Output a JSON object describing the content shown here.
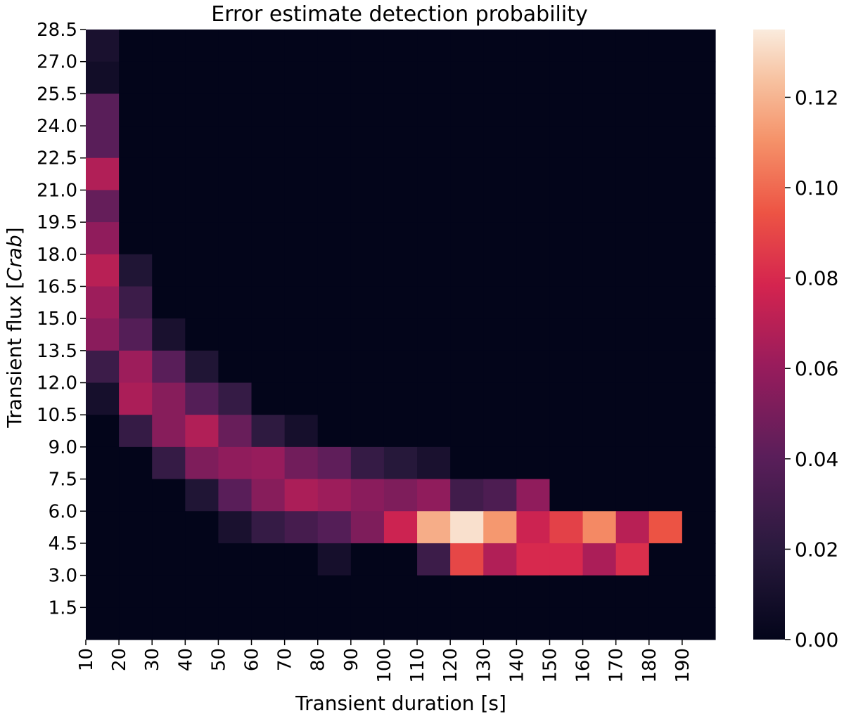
{
  "chart_data": {
    "type": "heatmap",
    "title": "Error estimate detection probability",
    "xlabel": "Transient duration [s]",
    "ylabel_prefix": "Transient flux [",
    "ylabel_italic": "Crab",
    "ylabel_suffix": "]",
    "x_tick_labels": [
      "10",
      "20",
      "30",
      "40",
      "50",
      "60",
      "70",
      "80",
      "90",
      "100",
      "110",
      "120",
      "130",
      "140",
      "150",
      "160",
      "170",
      "180",
      "190"
    ],
    "y_tick_labels": [
      "1.5",
      "3.0",
      "4.5",
      "6.0",
      "7.5",
      "9.0",
      "10.5",
      "12.0",
      "13.5",
      "15.0",
      "16.5",
      "18.0",
      "19.5",
      "21.0",
      "22.5",
      "24.0",
      "25.5",
      "27.0",
      "28.5"
    ],
    "x_bins": [
      10,
      20,
      30,
      40,
      50,
      60,
      70,
      80,
      90,
      100,
      110,
      120,
      130,
      140,
      150,
      160,
      170,
      180,
      190
    ],
    "y_bins_top_to_bottom": [
      28.5,
      27.0,
      25.5,
      24.0,
      22.5,
      21.0,
      19.5,
      18.0,
      16.5,
      15.0,
      13.5,
      12.0,
      10.5,
      9.0,
      7.5,
      6.0,
      4.5,
      3.0,
      1.5
    ],
    "values": [
      [
        0.012,
        0,
        0,
        0,
        0,
        0,
        0,
        0,
        0,
        0,
        0,
        0,
        0,
        0,
        0,
        0,
        0,
        0,
        0
      ],
      [
        0.008,
        0,
        0,
        0,
        0,
        0,
        0,
        0,
        0,
        0,
        0,
        0,
        0,
        0,
        0,
        0,
        0,
        0,
        0
      ],
      [
        0.04,
        0,
        0,
        0,
        0,
        0,
        0,
        0,
        0,
        0,
        0,
        0,
        0,
        0,
        0,
        0,
        0,
        0,
        0
      ],
      [
        0.04,
        0,
        0,
        0,
        0,
        0,
        0,
        0,
        0,
        0,
        0,
        0,
        0,
        0,
        0,
        0,
        0,
        0,
        0
      ],
      [
        0.068,
        0,
        0,
        0,
        0,
        0,
        0,
        0,
        0,
        0,
        0,
        0,
        0,
        0,
        0,
        0,
        0,
        0,
        0
      ],
      [
        0.044,
        0,
        0,
        0,
        0,
        0,
        0,
        0,
        0,
        0,
        0,
        0,
        0,
        0,
        0,
        0,
        0,
        0,
        0
      ],
      [
        0.058,
        0,
        0,
        0,
        0,
        0,
        0,
        0,
        0,
        0,
        0,
        0,
        0,
        0,
        0,
        0,
        0,
        0,
        0
      ],
      [
        0.07,
        0.015,
        0,
        0,
        0,
        0,
        0,
        0,
        0,
        0,
        0,
        0,
        0,
        0,
        0,
        0,
        0,
        0,
        0
      ],
      [
        0.062,
        0.028,
        0,
        0,
        0,
        0,
        0,
        0,
        0,
        0,
        0,
        0,
        0,
        0,
        0,
        0,
        0,
        0,
        0
      ],
      [
        0.056,
        0.038,
        0.012,
        0,
        0,
        0,
        0,
        0,
        0,
        0,
        0,
        0,
        0,
        0,
        0,
        0,
        0,
        0,
        0
      ],
      [
        0.028,
        0.062,
        0.04,
        0.015,
        0,
        0,
        0,
        0,
        0,
        0,
        0,
        0,
        0,
        0,
        0,
        0,
        0,
        0,
        0
      ],
      [
        0.01,
        0.066,
        0.055,
        0.038,
        0.025,
        0,
        0,
        0,
        0,
        0,
        0,
        0,
        0,
        0,
        0,
        0,
        0,
        0,
        0
      ],
      [
        0,
        0.025,
        0.055,
        0.068,
        0.045,
        0.022,
        0.01,
        0,
        0,
        0,
        0,
        0,
        0,
        0,
        0,
        0,
        0,
        0,
        0
      ],
      [
        0,
        0,
        0.025,
        0.052,
        0.058,
        0.06,
        0.048,
        0.042,
        0.025,
        0.018,
        0.012,
        0,
        0,
        0,
        0,
        0,
        0,
        0,
        0
      ],
      [
        0,
        0,
        0,
        0.015,
        0.04,
        0.055,
        0.066,
        0.062,
        0.056,
        0.052,
        0.058,
        0.03,
        0.035,
        0.058,
        0,
        0,
        0,
        0,
        0
      ],
      [
        0,
        0,
        0,
        0,
        0.012,
        0.025,
        0.032,
        0.038,
        0.052,
        0.076,
        0.118,
        0.132,
        0.112,
        0.076,
        0.088,
        0.108,
        0.07,
        0.094,
        0
      ],
      [
        0,
        0,
        0,
        0,
        0,
        0,
        0,
        0.01,
        0,
        0,
        0.028,
        0.09,
        0.068,
        0.08,
        0.08,
        0.066,
        0.082,
        0,
        0
      ],
      [
        0,
        0,
        0,
        0,
        0,
        0,
        0,
        0,
        0,
        0,
        0,
        0,
        0,
        0,
        0,
        0,
        0,
        0,
        0
      ],
      [
        0,
        0,
        0,
        0,
        0,
        0,
        0,
        0,
        0,
        0,
        0,
        0,
        0,
        0,
        0,
        0,
        0,
        0,
        0
      ]
    ],
    "colorbar": {
      "range": [
        0,
        0.135
      ],
      "ticks": [
        "0.00",
        "0.02",
        "0.04",
        "0.06",
        "0.08",
        "0.10",
        "0.12"
      ],
      "tick_values": [
        0,
        0.02,
        0.04,
        0.06,
        0.08,
        0.1,
        0.12
      ]
    },
    "colormap": "rocket"
  }
}
